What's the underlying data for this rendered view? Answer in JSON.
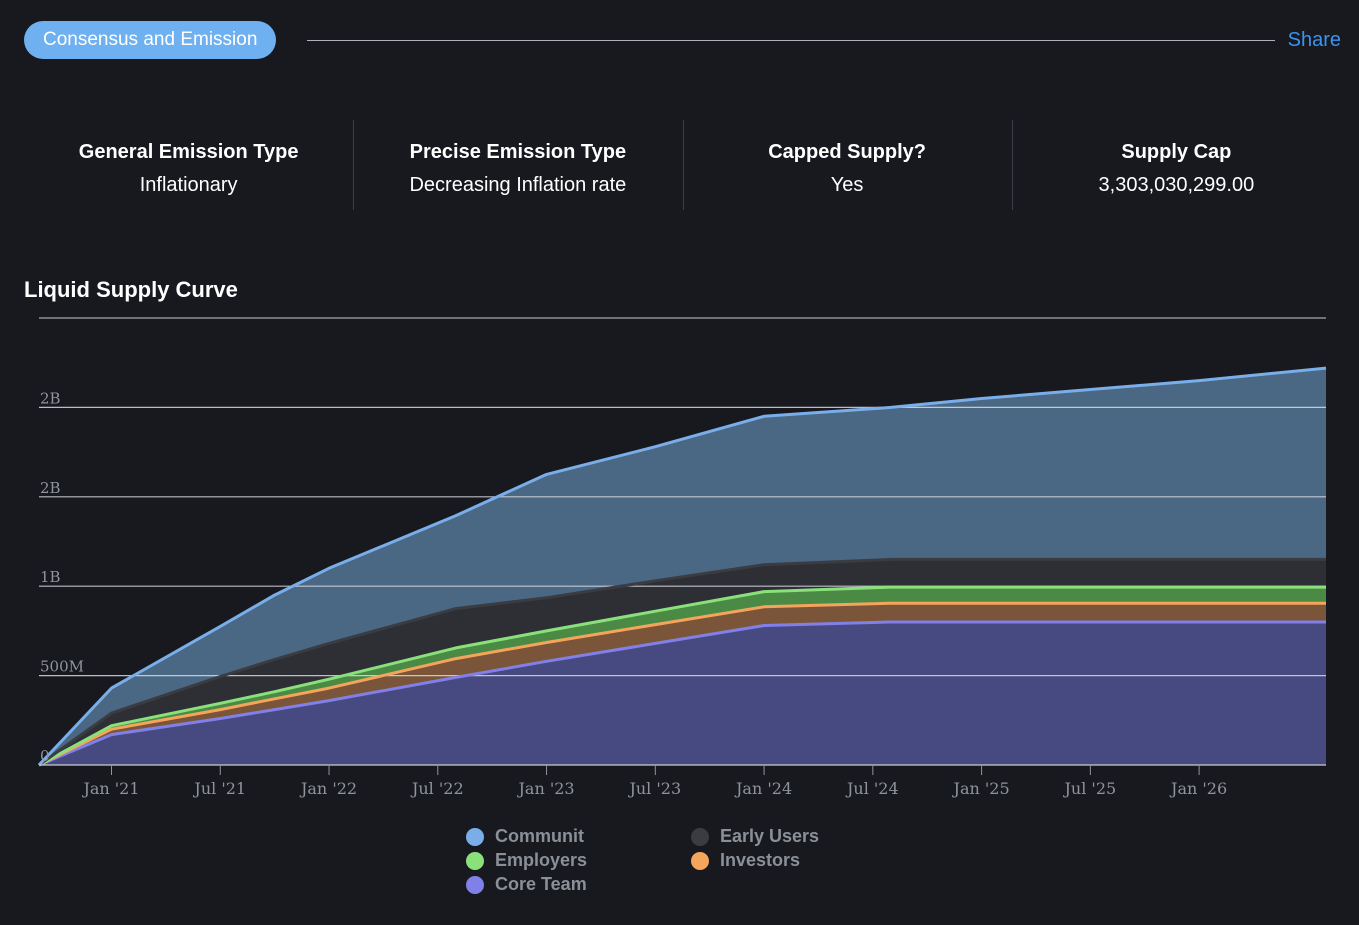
{
  "section": {
    "title": "Consensus and Emission",
    "share_label": "Share"
  },
  "stats": [
    {
      "label": "General Emission Type",
      "value": "Inflationary"
    },
    {
      "label": "Precise Emission Type",
      "value": "Decreasing Inflation rate"
    },
    {
      "label": "Capped Supply?",
      "value": "Yes"
    },
    {
      "label": "Supply Cap",
      "value": "3,303,030,299.00"
    }
  ],
  "chart_title": "Liquid Supply Curve",
  "chart_data": {
    "type": "area",
    "stacked": true,
    "title": "Liquid Supply Curve",
    "xlabel": "",
    "ylabel": "",
    "x": [
      "2020-09",
      "2021-01",
      "2021-07",
      "2021-10",
      "2022-01",
      "2022-08",
      "2023-01",
      "2023-07",
      "2024-01",
      "2024-08",
      "2025-01",
      "2025-07",
      "2026-01",
      "2026-08"
    ],
    "x_ticks": [
      "Jan '21",
      "Jul '21",
      "Jan '22",
      "Jul '22",
      "Jan '23",
      "Jul '23",
      "Jan '24",
      "Jul '24",
      "Jan '25",
      "Jul '25",
      "Jan '26"
    ],
    "x_tick_dates": [
      "2021-01",
      "2021-07",
      "2022-01",
      "2022-07",
      "2023-01",
      "2023-07",
      "2024-01",
      "2024-07",
      "2025-01",
      "2025-07",
      "2026-01"
    ],
    "y_ticks": [
      {
        "value": 0,
        "label": "0"
      },
      {
        "value": 500000000,
        "label": "500M"
      },
      {
        "value": 1000000000,
        "label": "1B"
      },
      {
        "value": 1500000000,
        "label": "2B"
      },
      {
        "value": 2000000000,
        "label": "2B"
      }
    ],
    "ylim": [
      0,
      2500000000
    ],
    "series": [
      {
        "name": "Core Team",
        "color": "#8080e8",
        "fill": "#474a80",
        "values": [
          0,
          170000000,
          260000000,
          310000000,
          360000000,
          490000000,
          580000000,
          680000000,
          780000000,
          800000000,
          800000000,
          800000000,
          800000000,
          800000000
        ]
      },
      {
        "name": "Investors",
        "color": "#f5a45c",
        "fill": "#7a5539",
        "values": [
          0,
          30000000,
          50000000,
          60000000,
          70000000,
          105000000,
          105000000,
          105000000,
          105000000,
          105000000,
          105000000,
          105000000,
          105000000,
          105000000
        ]
      },
      {
        "name": "Employers",
        "color": "#8ae17c",
        "fill": "#4b8a44",
        "values": [
          0,
          20000000,
          35000000,
          40000000,
          50000000,
          60000000,
          65000000,
          75000000,
          85000000,
          90000000,
          90000000,
          90000000,
          90000000,
          90000000
        ]
      },
      {
        "name": "Early Users",
        "color": "#3a3c42",
        "fill": "#2d2f34",
        "values": [
          0,
          70000000,
          150000000,
          180000000,
          200000000,
          220000000,
          185000000,
          170000000,
          150000000,
          155000000,
          155000000,
          155000000,
          155000000,
          155000000
        ]
      },
      {
        "name": "Communit",
        "color": "#79aeea",
        "fill": "#4a6784",
        "values": [
          0,
          140000000,
          280000000,
          360000000,
          420000000,
          520000000,
          690000000,
          750000000,
          830000000,
          850000000,
          900000000,
          950000000,
          1000000000,
          1070000000
        ]
      }
    ],
    "legend": {
      "position": "bottom",
      "order": [
        "Communit",
        "Early Users",
        "Employers",
        "Investors",
        "Core Team"
      ]
    },
    "grid": true
  }
}
